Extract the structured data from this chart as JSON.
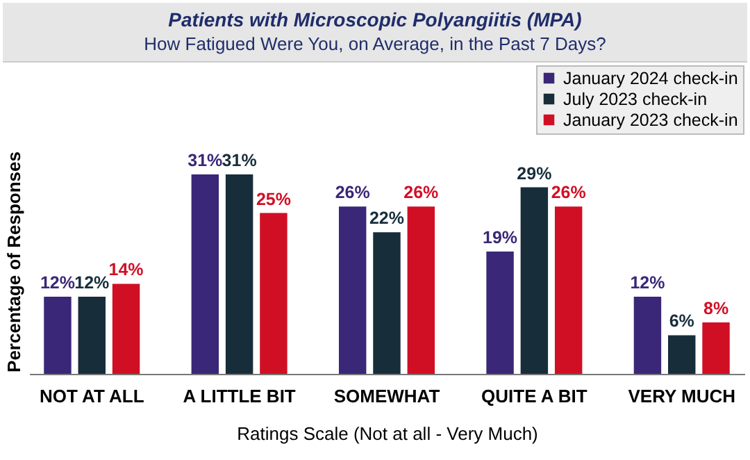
{
  "chart_data": {
    "type": "bar",
    "title": "Patients with Microscopic Polyangiitis (MPA)",
    "subtitle": "How Fatigued Were You, on Average, in the Past 7 Days?",
    "xlabel": "Ratings Scale (Not at all - Very Much)",
    "ylabel": "Percentage of Responses",
    "categories": [
      "NOT AT ALL",
      "A LITTLE BIT",
      "SOMEWHAT",
      "QUITE A BIT",
      "VERY MUCH"
    ],
    "series": [
      {
        "name": "January 2024 check-in",
        "color": "#3a2777",
        "values": [
          12,
          31,
          26,
          19,
          12
        ],
        "value_labels": [
          "12%",
          "31%",
          "26%",
          "19%",
          "12%"
        ]
      },
      {
        "name": "July 2023 check-in",
        "color": "#172d3a",
        "values": [
          12,
          31,
          22,
          29,
          6
        ],
        "value_labels": [
          "12%",
          "31%",
          "22%",
          "29%",
          "6%"
        ]
      },
      {
        "name": "January 2023 check-in",
        "color": "#d10f24",
        "values": [
          14,
          25,
          26,
          26,
          8
        ],
        "value_labels": [
          "14%",
          "25%",
          "26%",
          "26%",
          "8%"
        ]
      }
    ],
    "legend": "top right",
    "grid": false
  }
}
